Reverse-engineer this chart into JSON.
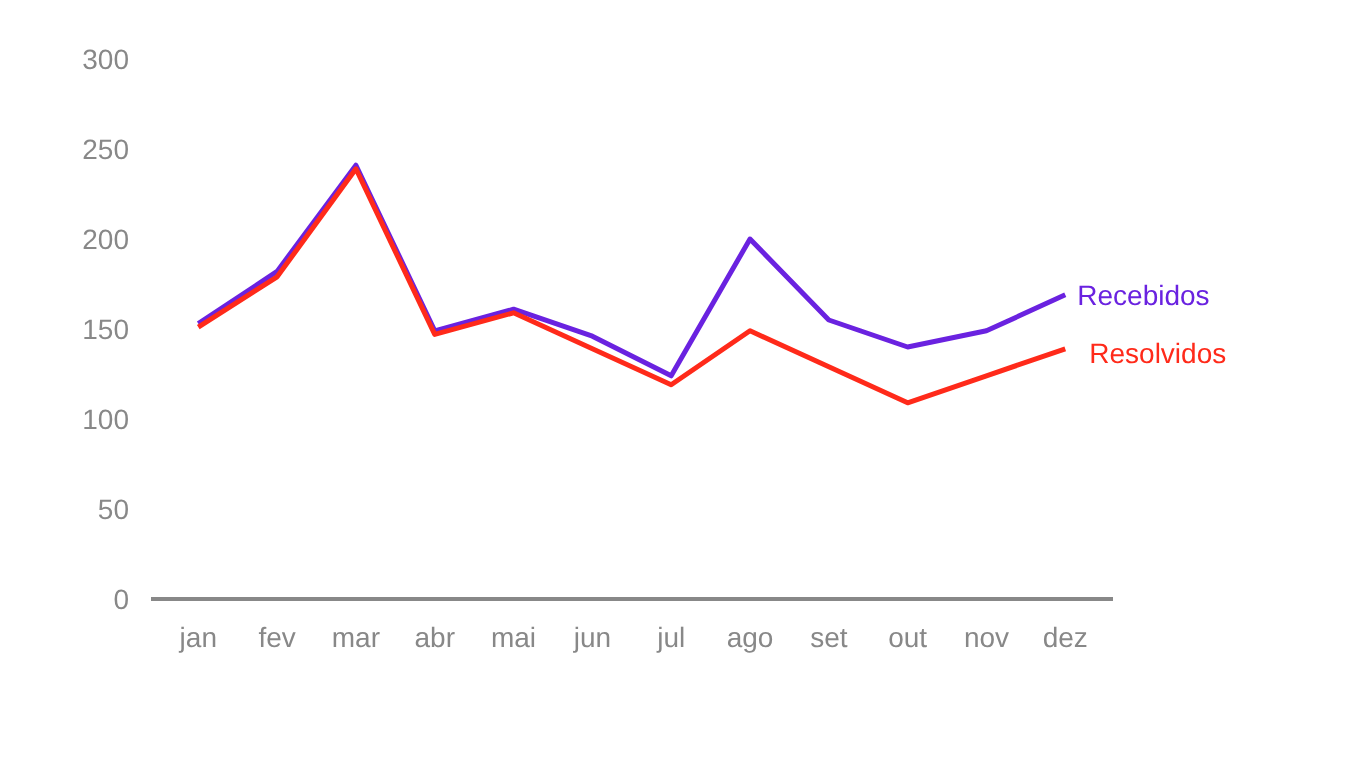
{
  "chart_data": {
    "type": "line",
    "categories": [
      "jan",
      "fev",
      "mar",
      "abr",
      "mai",
      "jun",
      "jul",
      "ago",
      "set",
      "out",
      "nov",
      "dez"
    ],
    "series": [
      {
        "name": "Recebidos",
        "color": "#6a22e0",
        "values": [
          153,
          182,
          241,
          149,
          161,
          146,
          124,
          200,
          155,
          140,
          149,
          169
        ]
      },
      {
        "name": "Resolvidos",
        "color": "#ff2a1a",
        "values": [
          151,
          179,
          239,
          147,
          159,
          139,
          119,
          149,
          129,
          109,
          124,
          139
        ]
      }
    ],
    "ylim": [
      0,
      300
    ],
    "yticks": [
      0,
      50,
      100,
      150,
      200,
      250,
      300
    ],
    "grid": false,
    "legend": false,
    "marker": "none",
    "line_style": "solid"
  }
}
